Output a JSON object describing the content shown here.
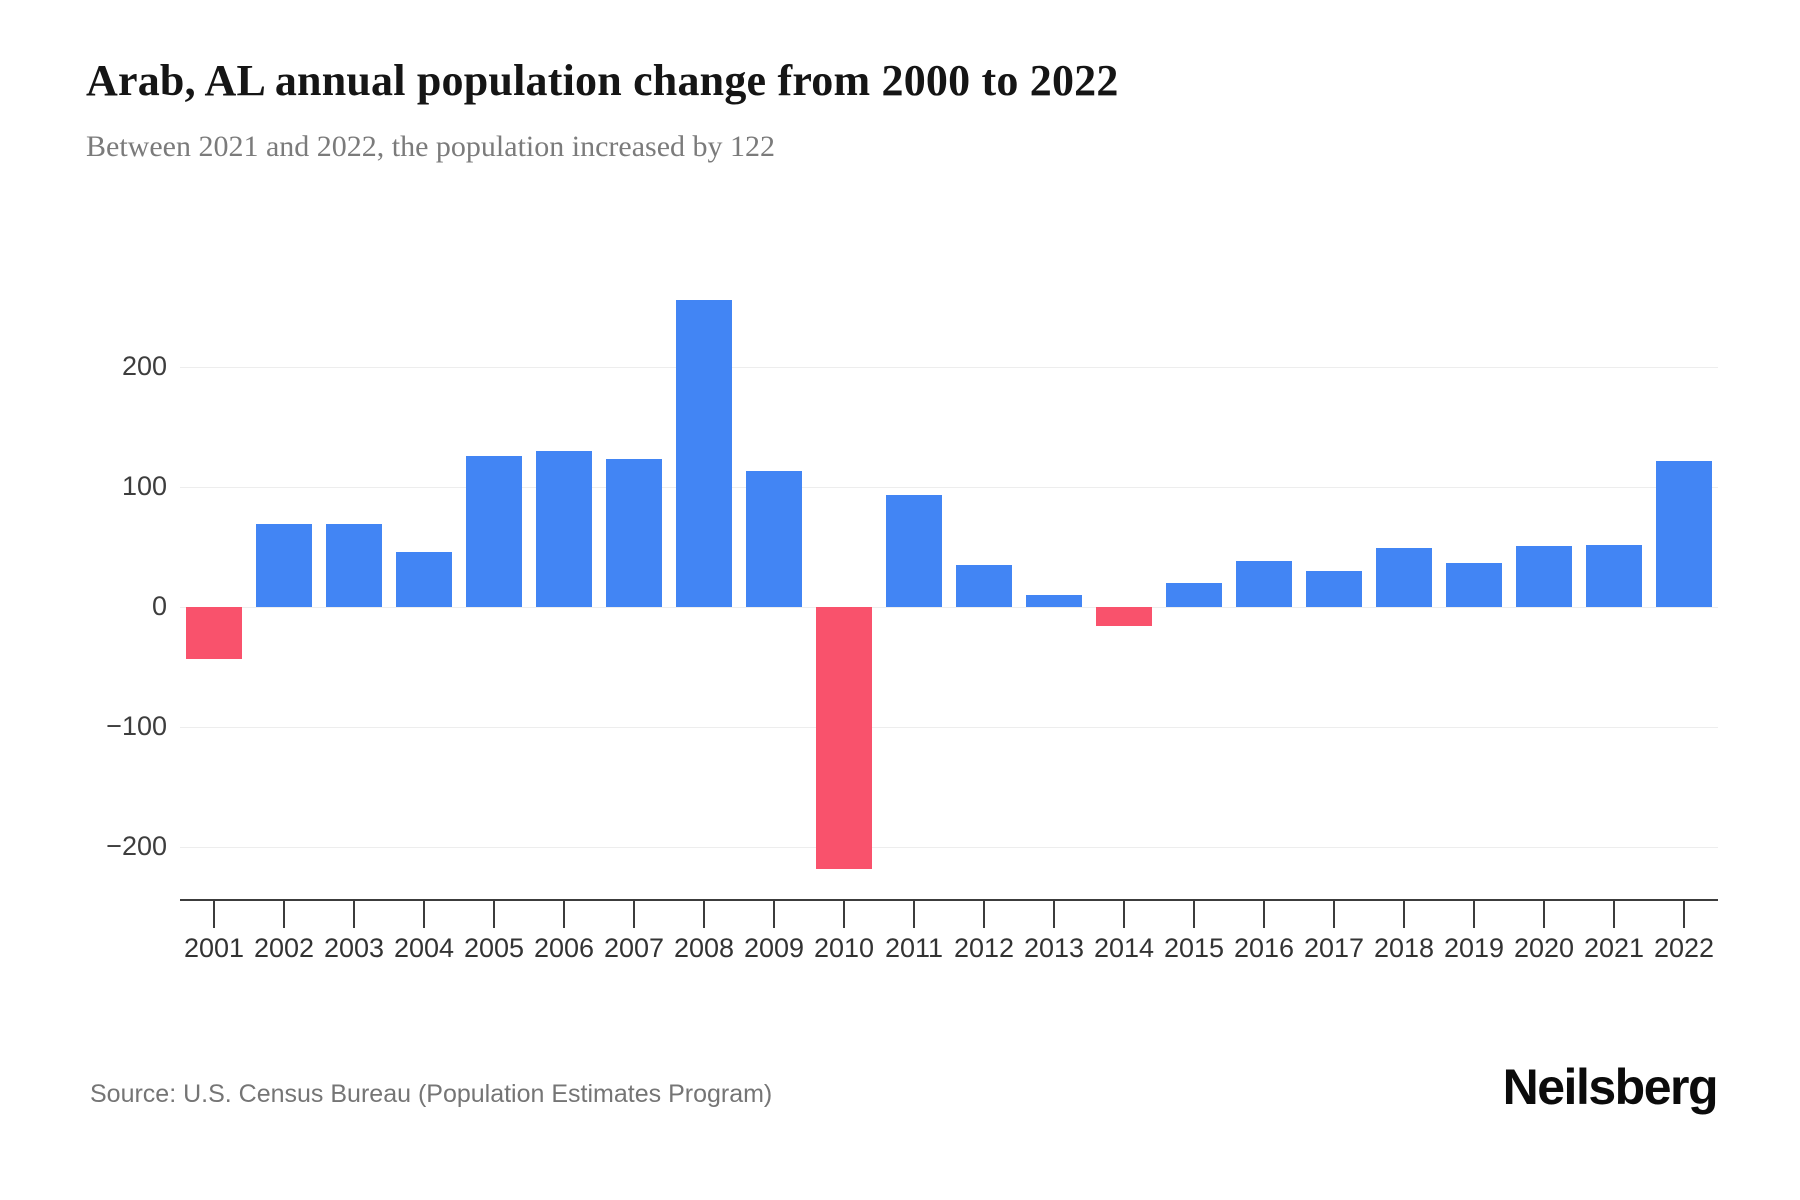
{
  "header": {
    "title": "Arab, AL annual population change from 2000 to 2022",
    "subtitle": "Between 2021 and 2022, the population increased by 122"
  },
  "chart_data": {
    "type": "bar",
    "title": "Arab, AL annual population change from 2000 to 2022",
    "subtitle": "Between 2021 and 2022, the population increased by 122",
    "categories": [
      "2001",
      "2002",
      "2003",
      "2004",
      "2005",
      "2006",
      "2007",
      "2008",
      "2009",
      "2010",
      "2011",
      "2012",
      "2013",
      "2014",
      "2015",
      "2016",
      "2017",
      "2018",
      "2019",
      "2020",
      "2021",
      "2022"
    ],
    "values": [
      -43,
      69,
      69,
      46,
      126,
      130,
      123,
      256,
      113,
      -218,
      93,
      35,
      10,
      -16,
      20,
      38,
      30,
      49,
      37,
      51,
      52,
      122
    ],
    "xlabel": "",
    "ylabel": "",
    "yticks": [
      {
        "label": "200",
        "value": 200
      },
      {
        "label": "100",
        "value": 100
      },
      {
        "label": "0",
        "value": 0
      },
      {
        "label": "−100",
        "value": -100
      },
      {
        "label": "−200",
        "value": -200
      }
    ],
    "ylim": [
      -245,
      295
    ],
    "grid": true,
    "legend": false,
    "bar_color_positive": "#4285f4",
    "bar_color_negative": "#f9526c"
  },
  "footer": {
    "source": "Source: U.S. Census Bureau (Population Estimates Program)",
    "brand": "Neilsberg"
  }
}
